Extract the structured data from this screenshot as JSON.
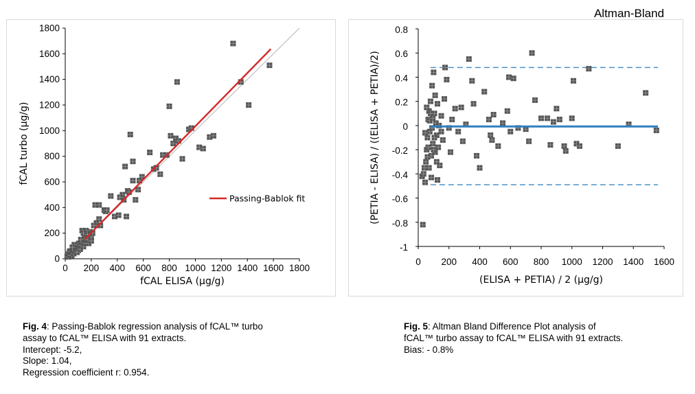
{
  "chart_data": [
    {
      "type": "scatter",
      "xlabel": "fCAL ELISA (µg/g)",
      "ylabel": "fCAL turbo (µg/g)",
      "xlim": [
        0,
        1800
      ],
      "ylim": [
        0,
        1800
      ],
      "xticks": [
        "0",
        "200",
        "400",
        "600",
        "800",
        "1000",
        "1200",
        "1400",
        "1600",
        "1800"
      ],
      "yticks": [
        "0",
        "200",
        "400",
        "600",
        "800",
        "1000",
        "1200",
        "1400",
        "1600",
        "1800"
      ],
      "grid": false,
      "legend": {
        "entries": [
          "Passing-Bablok fit"
        ],
        "placement": "right-center"
      },
      "fit_line": {
        "name": "Passing-Bablok fit",
        "color": "#d62728",
        "x": [
          150,
          1580
        ],
        "y": [
          150.8,
          1637.2
        ]
      },
      "identity_line": {
        "color": "#b4b4b4",
        "x": [
          0,
          1800
        ],
        "y": [
          0,
          1800
        ]
      },
      "series": [
        {
          "marker_color": "#555555",
          "points": [
            [
              15,
              20
            ],
            [
              20,
              35
            ],
            [
              25,
              15
            ],
            [
              30,
              45
            ],
            [
              35,
              60
            ],
            [
              40,
              30
            ],
            [
              45,
              55
            ],
            [
              50,
              25
            ],
            [
              55,
              70
            ],
            [
              60,
              80
            ],
            [
              65,
              40
            ],
            [
              70,
              95
            ],
            [
              75,
              60
            ],
            [
              80,
              110
            ],
            [
              85,
              70
            ],
            [
              90,
              85
            ],
            [
              95,
              100
            ],
            [
              100,
              65
            ],
            [
              105,
              120
            ],
            [
              110,
              90
            ],
            [
              115,
              75
            ],
            [
              120,
              105
            ],
            [
              130,
              140
            ],
            [
              140,
              95
            ],
            [
              150,
              160
            ],
            [
              160,
              120
            ],
            [
              170,
              150
            ],
            [
              180,
              180
            ],
            [
              190,
              210
            ],
            [
              200,
              170
            ],
            [
              210,
              200
            ],
            [
              130,
              220
            ],
            [
              160,
              220
            ],
            [
              240,
              280
            ],
            [
              260,
              310
            ],
            [
              270,
              260
            ],
            [
              300,
              380
            ],
            [
              310,
              370
            ],
            [
              230,
              420
            ],
            [
              260,
              420
            ],
            [
              350,
              490
            ],
            [
              380,
              330
            ],
            [
              410,
              340
            ],
            [
              430,
              480
            ],
            [
              440,
              500
            ],
            [
              450,
              460
            ],
            [
              470,
              330
            ],
            [
              480,
              530
            ],
            [
              490,
              520
            ],
            [
              500,
              970
            ],
            [
              520,
              610
            ],
            [
              540,
              460
            ],
            [
              560,
              540
            ],
            [
              570,
              610
            ],
            [
              590,
              640
            ],
            [
              650,
              830
            ],
            [
              680,
              700
            ],
            [
              700,
              710
            ],
            [
              730,
              660
            ],
            [
              750,
              810
            ],
            [
              780,
              810
            ],
            [
              800,
              1190
            ],
            [
              810,
              960
            ],
            [
              830,
              900
            ],
            [
              850,
              940
            ],
            [
              860,
              1380
            ],
            [
              870,
              920
            ],
            [
              900,
              780
            ],
            [
              950,
              1010
            ],
            [
              970,
              1020
            ],
            [
              1030,
              870
            ],
            [
              1060,
              860
            ],
            [
              1110,
              950
            ],
            [
              1140,
              960
            ],
            [
              1290,
              1680
            ],
            [
              1350,
              1380
            ],
            [
              1410,
              1200
            ],
            [
              1570,
              1510
            ],
            [
              460,
              720
            ],
            [
              520,
              760
            ],
            [
              120,
              150
            ],
            [
              180,
              120
            ],
            [
              220,
              260
            ],
            [
              320,
              380
            ],
            [
              420,
              480
            ],
            [
              90,
              50
            ],
            [
              70,
              110
            ],
            [
              55,
              90
            ],
            [
              140,
              200
            ],
            [
              200,
              140
            ],
            [
              170,
              190
            ]
          ]
        }
      ]
    },
    {
      "type": "scatter",
      "title": "Altman-Bland",
      "xlabel": "(ELISA + PETIA) / 2 (µg/g)",
      "ylabel": "(PETIA - ELISA) / ((ELISA + PETIA)/2)",
      "xlim": [
        0,
        1600
      ],
      "ylim": [
        -1,
        0.8
      ],
      "xticks": [
        "0",
        "200",
        "400",
        "600",
        "800",
        "1000",
        "1200",
        "1400",
        "1600"
      ],
      "yticks": [
        "-1",
        "-0.8",
        "-0.6",
        "-0.4",
        "-0.2",
        "0",
        "0.2",
        "0.4",
        "0.6",
        "0.8"
      ],
      "grid": false,
      "bias_line": {
        "y": -0.008,
        "x": [
          80,
          1560
        ],
        "color": "#2f7fc1"
      },
      "limit_lines": {
        "y": [
          0.48,
          -0.49
        ],
        "x": [
          80,
          1560
        ],
        "color": "#4a90c8",
        "dash": "dashed"
      },
      "series": [
        {
          "marker_color": "#555555",
          "points": [
            [
              30,
              -0.82
            ],
            [
              25,
              -0.42
            ],
            [
              35,
              -0.4
            ],
            [
              40,
              -0.35
            ],
            [
              45,
              -0.47
            ],
            [
              50,
              -0.3
            ],
            [
              55,
              -0.2
            ],
            [
              60,
              -0.1
            ],
            [
              65,
              0.05
            ],
            [
              70,
              0.12
            ],
            [
              75,
              -0.05
            ],
            [
              80,
              0.2
            ],
            [
              85,
              -0.25
            ],
            [
              90,
              0.33
            ],
            [
              95,
              -0.15
            ],
            [
              100,
              0.44
            ],
            [
              105,
              0.1
            ],
            [
              110,
              -0.22
            ],
            [
              115,
              0.02
            ],
            [
              120,
              -0.08
            ],
            [
              125,
              -0.45
            ],
            [
              130,
              -0.18
            ],
            [
              140,
              -0.33
            ],
            [
              150,
              0.08
            ],
            [
              160,
              -0.12
            ],
            [
              170,
              0.22
            ],
            [
              175,
              0.48
            ],
            [
              185,
              0.38
            ],
            [
              200,
              -0.02
            ],
            [
              210,
              -0.22
            ],
            [
              220,
              0.05
            ],
            [
              240,
              0.14
            ],
            [
              260,
              -0.05
            ],
            [
              280,
              0.15
            ],
            [
              290,
              -0.13
            ],
            [
              310,
              0.01
            ],
            [
              330,
              0.55
            ],
            [
              350,
              0.37
            ],
            [
              360,
              0.18
            ],
            [
              380,
              -0.25
            ],
            [
              400,
              -0.35
            ],
            [
              430,
              0.28
            ],
            [
              460,
              0.05
            ],
            [
              470,
              -0.08
            ],
            [
              480,
              -0.12
            ],
            [
              490,
              0.09
            ],
            [
              520,
              -0.17
            ],
            [
              550,
              0.02
            ],
            [
              580,
              0.12
            ],
            [
              590,
              0.4
            ],
            [
              600,
              -0.05
            ],
            [
              620,
              0.39
            ],
            [
              650,
              -0.02
            ],
            [
              700,
              -0.03
            ],
            [
              720,
              -0.13
            ],
            [
              740,
              0.6
            ],
            [
              760,
              0.21
            ],
            [
              800,
              0.06
            ],
            [
              840,
              0.06
            ],
            [
              860,
              -0.16
            ],
            [
              880,
              0.03
            ],
            [
              900,
              0.14
            ],
            [
              920,
              0.05
            ],
            [
              950,
              -0.17
            ],
            [
              960,
              -0.21
            ],
            [
              1000,
              0.06
            ],
            [
              1010,
              0.37
            ],
            [
              1030,
              -0.15
            ],
            [
              1050,
              -0.17
            ],
            [
              1110,
              0.47
            ],
            [
              1300,
              -0.17
            ],
            [
              1370,
              0.01
            ],
            [
              1480,
              0.27
            ],
            [
              1550,
              -0.04
            ],
            [
              60,
              -0.26
            ],
            [
              70,
              -0.35
            ],
            [
              90,
              -0.02
            ],
            [
              100,
              -0.2
            ],
            [
              80,
              0.1
            ],
            [
              65,
              -0.18
            ],
            [
              110,
              0.25
            ],
            [
              85,
              -0.43
            ],
            [
              75,
              0.04
            ],
            [
              95,
              0.06
            ],
            [
              55,
              0.15
            ],
            [
              45,
              -0.06
            ],
            [
              120,
              -0.3
            ],
            [
              135,
              0.0
            ],
            [
              150,
              -0.05
            ],
            [
              125,
              0.18
            ],
            [
              105,
              -0.1
            ]
          ]
        }
      ]
    }
  ],
  "captions": {
    "fig4": {
      "label": "Fig. 4",
      "line1": ": Passing-Bablok regression analysis of fCAL™ turbo",
      "line2": "assay to fCAL™ ELISA with 91 extracts.",
      "line3": "Intercept: -5.2,",
      "line4": "Slope: 1.04,",
      "line5": "Regression coefficient r: 0.954."
    },
    "fig5": {
      "label": "Fig. 5",
      "line1": ": Altman Bland Difference Plot analysis of",
      "line2": "fCAL™ turbo assay to fCAL™ ELISA with 91 extracts.",
      "line3": "Bias: - 0.8%"
    }
  }
}
